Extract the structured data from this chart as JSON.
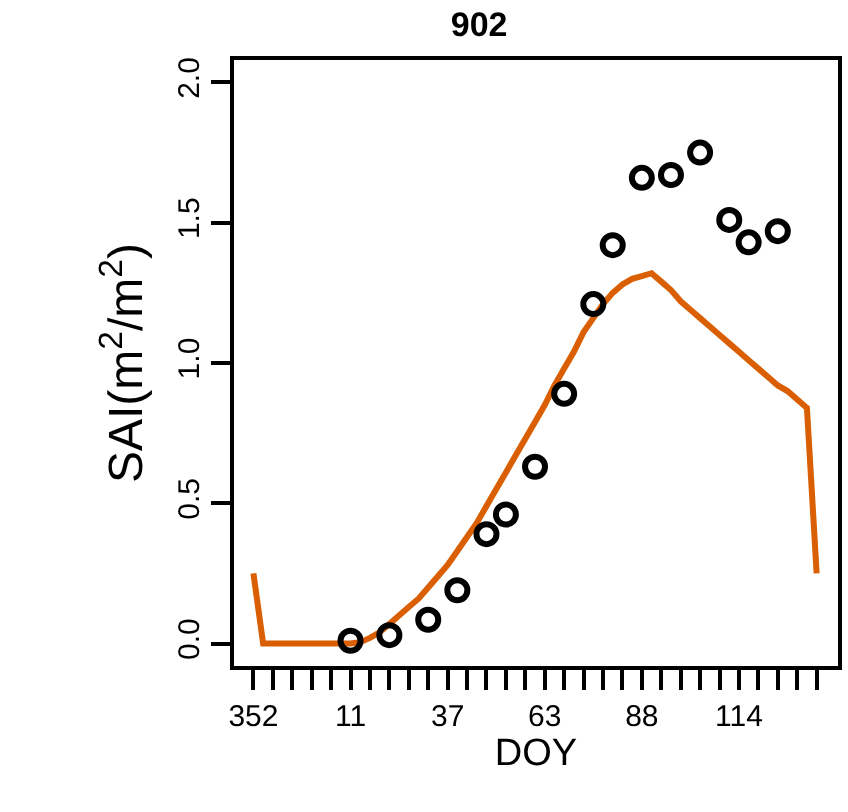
{
  "chart_data": {
    "type": "line",
    "title": "902",
    "xlabel": "DOY",
    "ylabel": "SAI(m$^{2}$/m$^{2}$)",
    "categories": [
      "352",
      null,
      null,
      null,
      null,
      null,
      null,
      null,
      null,
      null,
      "11",
      null,
      null,
      null,
      null,
      null,
      null,
      null,
      null,
      null,
      "37",
      null,
      null,
      null,
      null,
      null,
      null,
      null,
      null,
      null,
      "63",
      null,
      null,
      null,
      null,
      null,
      null,
      null,
      null,
      null,
      "88",
      null,
      null,
      null,
      null,
      null,
      null,
      null,
      null,
      null,
      "114",
      null,
      null,
      null,
      null,
      null,
      null,
      null,
      null
    ],
    "ylim": [
      -0.08,
      2.08
    ],
    "yticks": [
      {
        "value": 0,
        "label": "0.0"
      },
      {
        "value": 0.5,
        "label": "0.5"
      },
      {
        "value": 1,
        "label": "1.0"
      },
      {
        "value": 1.5,
        "label": "1.5"
      },
      {
        "value": 2,
        "label": "2.0"
      }
    ],
    "grid": false,
    "series": [
      {
        "color": "#d95f02",
        "line_style": "solid",
        "marker": "none",
        "values": [
          0.25,
          0,
          0,
          0,
          0,
          0,
          0,
          0,
          0,
          0,
          0,
          0.005,
          0.02,
          0.04,
          0.07,
          0.1,
          0.13,
          0.16,
          0.2,
          0.24,
          0.28,
          0.33,
          0.38,
          0.43,
          0.49,
          0.55,
          0.61,
          0.67,
          0.73,
          0.79,
          0.85,
          0.92,
          0.98,
          1.04,
          1.11,
          1.16,
          1.21,
          1.25,
          1.28,
          1.3,
          1.31,
          1.32,
          1.29,
          1.26,
          1.22,
          1.19,
          1.16,
          1.13,
          1.1,
          1.07,
          1.04,
          1.01,
          0.98,
          0.95,
          0.92,
          0.9,
          0.87,
          0.84,
          0.25
        ]
      },
      {
        "type": "scatter",
        "color": "#000000",
        "marker": "circle",
        "values": [
          null,
          null,
          null,
          null,
          null,
          null,
          null,
          null,
          null,
          null,
          0.01,
          null,
          null,
          null,
          0.03,
          null,
          null,
          null,
          0.085,
          null,
          null,
          0.19,
          null,
          null,
          0.39,
          null,
          0.46,
          null,
          null,
          0.63,
          null,
          null,
          0.89,
          null,
          null,
          1.21,
          null,
          1.42,
          null,
          null,
          1.66,
          null,
          null,
          1.67,
          null,
          null,
          1.75,
          null,
          null,
          1.51,
          null,
          1.43,
          null,
          null,
          1.47,
          null,
          null,
          null,
          null
        ]
      }
    ]
  }
}
